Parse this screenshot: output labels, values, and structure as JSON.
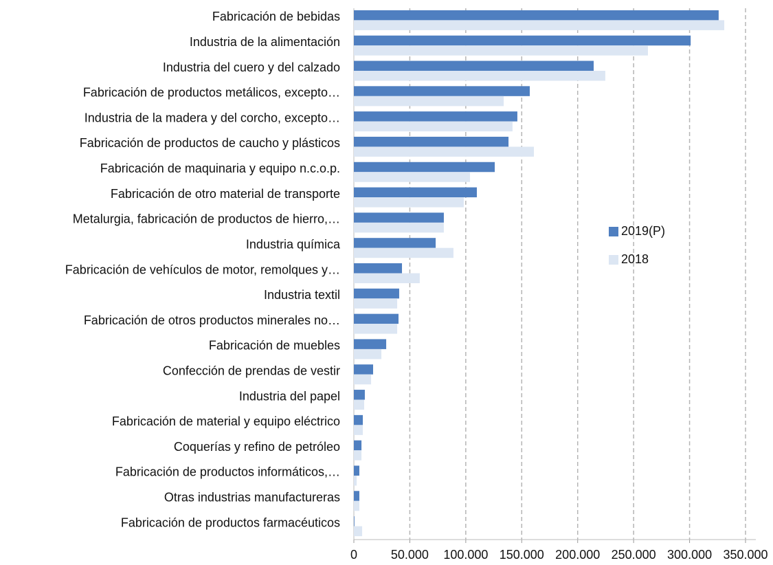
{
  "chart_data": {
    "type": "barh",
    "categories": [
      "Fabricación de bebidas",
      "Industria de la alimentación",
      "Industria del cuero y del calzado",
      "Fabricación de productos metálicos, excepto…",
      "Industria de la madera y del corcho, excepto…",
      "Fabricación de productos de caucho y plásticos",
      "Fabricación de maquinaria y equipo n.c.o.p.",
      "Fabricación de otro material de transporte",
      "Metalurgia, fabricación de productos de hierro,…",
      "Industria química",
      "Fabricación de vehículos de motor, remolques y…",
      "Industria textil",
      "Fabricación de otros productos minerales no…",
      "Fabricación de muebles",
      "Confección de prendas de vestir",
      "Industria del papel",
      "Fabricación de material y equipo eléctrico",
      "Coquerías y refino de petróleo",
      "Fabricación de productos informáticos,…",
      "Otras industrias manufactureras",
      "Fabricación de productos farmacéuticos"
    ],
    "series": [
      {
        "name": "2019(P)",
        "color": "#4f7fc0",
        "values": [
          326000,
          301000,
          214300,
          157200,
          146100,
          138200,
          125900,
          109900,
          80400,
          73100,
          43000,
          40500,
          39900,
          28900,
          17200,
          9800,
          8000,
          6800,
          4900,
          4900,
          500
        ]
      },
      {
        "name": "2018",
        "color": "#dce6f3",
        "values": [
          331000,
          262800,
          224700,
          133900,
          141800,
          160900,
          103800,
          98200,
          80400,
          89000,
          58900,
          38700,
          38700,
          24600,
          15400,
          9200,
          8000,
          6800,
          2500,
          4900,
          7400
        ]
      }
    ],
    "xlim": [
      0,
      350000
    ],
    "xticks": [
      0,
      {
        "value": 50000,
        "label": "50.000"
      },
      {
        "value": 100000,
        "label": "100.000"
      },
      {
        "value": 150000,
        "label": "150.000"
      },
      {
        "value": 200000,
        "label": "200.000"
      },
      {
        "value": 250000,
        "label": "250.000"
      },
      {
        "value": 300000,
        "label": "300.000"
      },
      {
        "value": 350000,
        "label": "350.000"
      }
    ],
    "grid": true,
    "legend": "right"
  }
}
